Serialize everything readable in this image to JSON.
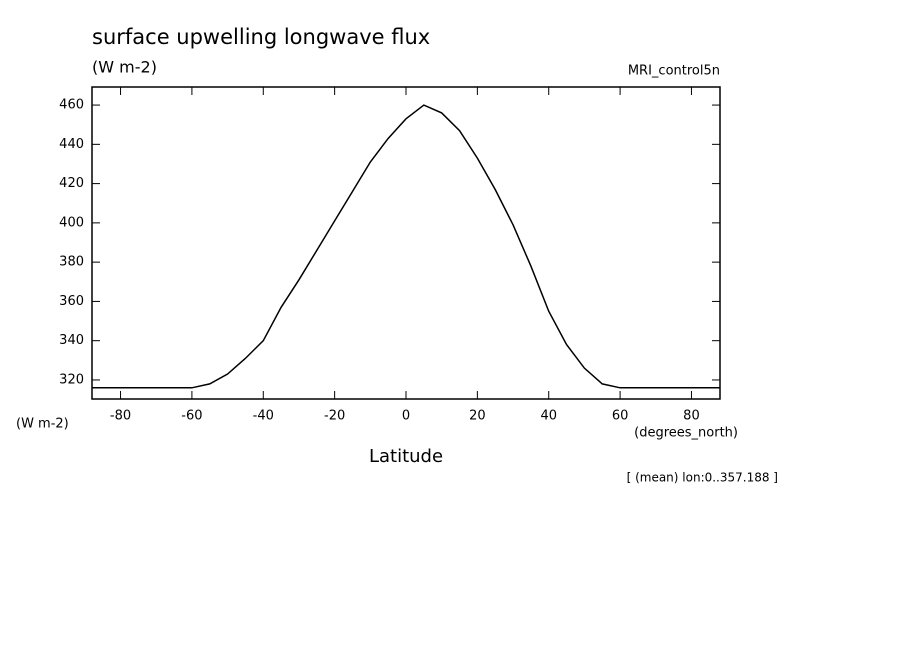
{
  "chart_data": {
    "type": "line",
    "title": "surface upwelling longwave flux",
    "units": "(W m-2)",
    "dataset": "MRI_control5n",
    "y_axis_label": "(W m-2)",
    "x_axis_units": "(degrees_north)",
    "x_axis_label": "Latitude",
    "annotation": "[ (mean) lon:0..357.188 ]",
    "x": [
      -88,
      -80,
      -70,
      -60,
      -55,
      -50,
      -45,
      -40,
      -35,
      -30,
      -25,
      -20,
      -15,
      -10,
      -5,
      0,
      5,
      10,
      15,
      20,
      25,
      30,
      35,
      40,
      45,
      50,
      55,
      60,
      70,
      80,
      88
    ],
    "series": [
      {
        "name": "surface upwelling longwave flux",
        "color": "#000000",
        "values": [
          316,
          316,
          316,
          316,
          318,
          323,
          331,
          340,
          357,
          371,
          386,
          401,
          416,
          431,
          443,
          453,
          460,
          456,
          447,
          433,
          417,
          399,
          378,
          355,
          338,
          326,
          318,
          316,
          316,
          316,
          316
        ]
      }
    ],
    "xlim": [
      -88,
      88
    ],
    "ylim": [
      310.3,
      469.2
    ],
    "xticks": [
      -80,
      -60,
      -40,
      -20,
      0,
      20,
      40,
      60,
      80
    ],
    "yticks": [
      320,
      340,
      360,
      380,
      400,
      420,
      440,
      460
    ]
  }
}
